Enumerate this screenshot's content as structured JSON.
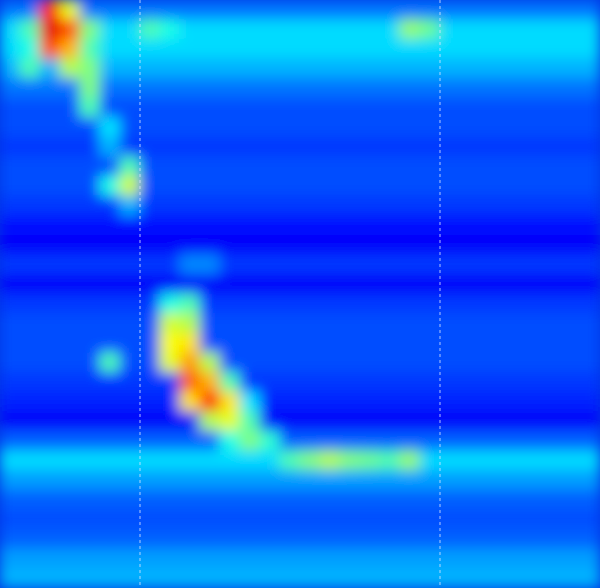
{
  "chart_data": {
    "type": "heatmap",
    "color": "jet",
    "tick_labels": false,
    "xlim": [
      0,
      30
    ],
    "ylim": [
      0,
      30
    ],
    "zlim": [
      0,
      100
    ],
    "vlines": [
      7,
      22
    ],
    "values": [
      [
        24,
        24,
        85,
        60,
        24,
        24,
        24,
        24,
        24,
        24,
        24,
        24,
        24,
        24,
        24,
        24,
        24,
        24,
        24,
        24,
        24,
        24,
        24,
        24,
        24,
        24,
        24,
        24,
        24,
        24
      ],
      [
        34,
        45,
        90,
        80,
        50,
        34,
        34,
        45,
        40,
        34,
        34,
        34,
        34,
        34,
        34,
        34,
        34,
        34,
        34,
        34,
        52,
        48,
        34,
        34,
        34,
        34,
        34,
        34,
        34,
        34
      ],
      [
        34,
        40,
        80,
        70,
        45,
        34,
        34,
        34,
        34,
        34,
        34,
        34,
        34,
        34,
        34,
        34,
        34,
        34,
        34,
        34,
        34,
        34,
        34,
        34,
        34,
        34,
        34,
        34,
        34,
        34
      ],
      [
        30,
        45,
        30,
        55,
        50,
        30,
        30,
        30,
        30,
        30,
        30,
        30,
        30,
        30,
        30,
        30,
        30,
        30,
        30,
        30,
        30,
        30,
        30,
        30,
        30,
        30,
        30,
        30,
        30,
        30
      ],
      [
        24,
        24,
        24,
        24,
        50,
        24,
        24,
        24,
        24,
        24,
        24,
        24,
        24,
        24,
        24,
        24,
        24,
        24,
        24,
        24,
        24,
        24,
        24,
        24,
        24,
        24,
        24,
        24,
        24,
        24
      ],
      [
        20,
        20,
        20,
        20,
        45,
        20,
        20,
        20,
        20,
        20,
        20,
        20,
        20,
        20,
        20,
        20,
        20,
        20,
        20,
        20,
        20,
        20,
        20,
        20,
        20,
        20,
        20,
        20,
        20,
        20
      ],
      [
        20,
        20,
        20,
        20,
        20,
        35,
        20,
        20,
        20,
        20,
        20,
        20,
        20,
        20,
        20,
        20,
        20,
        20,
        20,
        20,
        20,
        20,
        20,
        20,
        20,
        20,
        20,
        20,
        20,
        20
      ],
      [
        18,
        18,
        18,
        18,
        18,
        30,
        18,
        18,
        18,
        18,
        18,
        18,
        18,
        18,
        18,
        18,
        18,
        18,
        18,
        18,
        18,
        18,
        18,
        18,
        18,
        18,
        18,
        18,
        18,
        18
      ],
      [
        20,
        20,
        20,
        20,
        20,
        20,
        45,
        20,
        20,
        20,
        20,
        20,
        20,
        20,
        20,
        20,
        20,
        20,
        20,
        20,
        20,
        20,
        20,
        20,
        20,
        20,
        20,
        20,
        20,
        20
      ],
      [
        20,
        20,
        20,
        20,
        20,
        40,
        58,
        20,
        20,
        20,
        20,
        20,
        20,
        20,
        20,
        20,
        20,
        20,
        20,
        20,
        20,
        20,
        20,
        20,
        20,
        20,
        20,
        20,
        20,
        20
      ],
      [
        18,
        18,
        18,
        18,
        18,
        18,
        30,
        18,
        18,
        18,
        18,
        18,
        18,
        18,
        18,
        18,
        18,
        18,
        18,
        18,
        18,
        18,
        18,
        18,
        18,
        18,
        18,
        18,
        18,
        18
      ],
      [
        14,
        14,
        14,
        14,
        14,
        14,
        14,
        14,
        14,
        14,
        14,
        14,
        14,
        14,
        14,
        14,
        14,
        14,
        14,
        14,
        14,
        14,
        14,
        14,
        14,
        14,
        14,
        14,
        14,
        14
      ],
      [
        12,
        12,
        12,
        12,
        12,
        12,
        12,
        12,
        12,
        12,
        12,
        12,
        12,
        12,
        12,
        12,
        12,
        12,
        12,
        12,
        12,
        12,
        12,
        12,
        12,
        12,
        12,
        12,
        12,
        12
      ],
      [
        18,
        18,
        18,
        18,
        18,
        18,
        18,
        18,
        18,
        26,
        26,
        18,
        18,
        18,
        18,
        18,
        18,
        18,
        18,
        18,
        18,
        18,
        18,
        18,
        18,
        18,
        18,
        18,
        18,
        18
      ],
      [
        12,
        12,
        12,
        12,
        12,
        12,
        12,
        12,
        12,
        12,
        12,
        12,
        12,
        12,
        12,
        12,
        12,
        12,
        12,
        12,
        12,
        12,
        12,
        12,
        12,
        12,
        12,
        12,
        12,
        12
      ],
      [
        18,
        18,
        18,
        18,
        18,
        18,
        18,
        18,
        40,
        45,
        18,
        18,
        18,
        18,
        18,
        18,
        18,
        18,
        18,
        18,
        18,
        18,
        18,
        18,
        18,
        18,
        18,
        18,
        18,
        18
      ],
      [
        20,
        20,
        20,
        20,
        20,
        20,
        20,
        20,
        58,
        55,
        20,
        20,
        20,
        20,
        20,
        20,
        20,
        20,
        20,
        20,
        20,
        20,
        20,
        20,
        20,
        20,
        20,
        20,
        20,
        20
      ],
      [
        20,
        20,
        20,
        20,
        20,
        20,
        20,
        20,
        62,
        65,
        20,
        20,
        20,
        20,
        20,
        20,
        20,
        20,
        20,
        20,
        20,
        20,
        20,
        20,
        20,
        20,
        20,
        20,
        20,
        20
      ],
      [
        20,
        20,
        20,
        20,
        20,
        45,
        20,
        20,
        60,
        72,
        55,
        20,
        20,
        20,
        20,
        20,
        20,
        20,
        20,
        20,
        20,
        20,
        20,
        20,
        20,
        20,
        20,
        20,
        20,
        20
      ],
      [
        18,
        18,
        18,
        18,
        18,
        18,
        18,
        18,
        18,
        78,
        70,
        45,
        18,
        18,
        18,
        18,
        18,
        18,
        18,
        18,
        18,
        18,
        18,
        18,
        18,
        18,
        18,
        18,
        18,
        18
      ],
      [
        16,
        16,
        16,
        16,
        16,
        16,
        16,
        16,
        16,
        65,
        85,
        65,
        35,
        16,
        16,
        16,
        16,
        16,
        16,
        16,
        16,
        16,
        16,
        16,
        16,
        16,
        16,
        16,
        16,
        16
      ],
      [
        12,
        12,
        12,
        12,
        12,
        12,
        12,
        12,
        12,
        12,
        55,
        60,
        45,
        12,
        12,
        12,
        12,
        12,
        12,
        12,
        12,
        12,
        12,
        12,
        12,
        12,
        12,
        12,
        12,
        12
      ],
      [
        22,
        22,
        22,
        22,
        22,
        22,
        22,
        22,
        22,
        22,
        22,
        40,
        50,
        42,
        22,
        22,
        22,
        22,
        22,
        22,
        22,
        22,
        22,
        22,
        22,
        22,
        22,
        22,
        22,
        22
      ],
      [
        34,
        34,
        34,
        34,
        34,
        34,
        34,
        34,
        34,
        34,
        34,
        34,
        34,
        34,
        45,
        50,
        55,
        50,
        48,
        45,
        52,
        34,
        34,
        34,
        34,
        34,
        34,
        34,
        34,
        34
      ],
      [
        28,
        28,
        28,
        28,
        28,
        28,
        28,
        28,
        28,
        28,
        28,
        28,
        28,
        28,
        28,
        28,
        28,
        28,
        28,
        28,
        28,
        28,
        28,
        28,
        28,
        28,
        28,
        28,
        28,
        28
      ],
      [
        22,
        22,
        22,
        22,
        22,
        22,
        22,
        22,
        22,
        22,
        22,
        22,
        22,
        22,
        22,
        22,
        22,
        22,
        22,
        22,
        22,
        22,
        22,
        22,
        22,
        22,
        22,
        22,
        22,
        22
      ],
      [
        20,
        20,
        20,
        20,
        20,
        20,
        20,
        20,
        20,
        20,
        20,
        20,
        20,
        20,
        20,
        20,
        20,
        20,
        20,
        20,
        20,
        20,
        20,
        20,
        20,
        20,
        20,
        20,
        20,
        20
      ],
      [
        22,
        22,
        22,
        22,
        22,
        22,
        22,
        22,
        22,
        22,
        22,
        22,
        22,
        22,
        22,
        22,
        22,
        22,
        22,
        22,
        22,
        22,
        22,
        22,
        22,
        22,
        22,
        22,
        22,
        22
      ],
      [
        28,
        28,
        28,
        28,
        28,
        28,
        28,
        28,
        28,
        28,
        28,
        28,
        28,
        28,
        28,
        28,
        28,
        28,
        28,
        28,
        28,
        28,
        28,
        28,
        28,
        28,
        28,
        28,
        28,
        28
      ],
      [
        30,
        30,
        30,
        30,
        30,
        30,
        30,
        30,
        30,
        30,
        30,
        30,
        30,
        30,
        30,
        30,
        30,
        30,
        30,
        30,
        30,
        30,
        30,
        30,
        30,
        30,
        30,
        30,
        30,
        30
      ]
    ]
  }
}
